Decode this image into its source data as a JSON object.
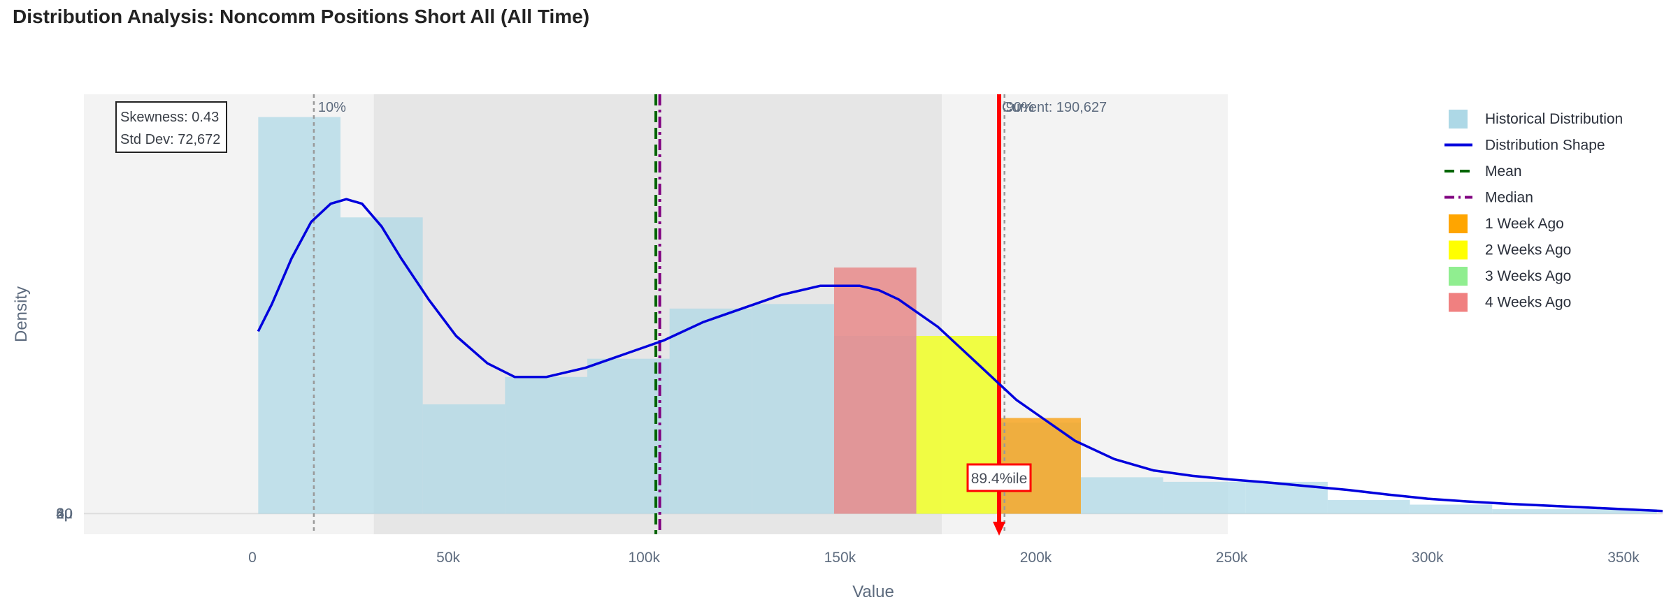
{
  "title": "Distribution Analysis: Noncomm Positions Short All (All Time)",
  "chart_data": {
    "type": "bar",
    "xlabel": "Value",
    "ylabel": "Density",
    "xlim": [
      -43000,
      360000
    ],
    "ylim": [
      -0.00045,
      0.0092
    ],
    "x_ticks": [
      {
        "value": 0,
        "label": "0"
      },
      {
        "value": 50000,
        "label": "50k"
      },
      {
        "value": 100000,
        "label": "100k"
      },
      {
        "value": 150000,
        "label": "150k"
      },
      {
        "value": 200000,
        "label": "200k"
      },
      {
        "value": 250000,
        "label": "250k"
      },
      {
        "value": 300000,
        "label": "300k"
      },
      {
        "value": 350000,
        "label": "350k"
      }
    ],
    "y_ticks": [
      {
        "value": 0,
        "label": "0"
      },
      {
        "value": 2e-06,
        "label": "2µ"
      },
      {
        "value": 4e-06,
        "label": "4µ"
      },
      {
        "value": 6e-06,
        "label": "6µ"
      },
      {
        "value": 8e-06,
        "label": "8µ"
      }
    ],
    "y_display_scale": 1000,
    "bands": [
      {
        "x0": 31000,
        "x1": 176000,
        "color": "#e6e6e6"
      },
      {
        "x0": -43000,
        "x1": 31000,
        "color": "#f3f3f3"
      },
      {
        "x0": 176000,
        "x1": 249000,
        "color": "#f3f3f3"
      }
    ],
    "histogram": [
      {
        "x0": 1500,
        "x1": 22500,
        "density": 0.0087
      },
      {
        "x0": 22500,
        "x1": 43500,
        "density": 0.0065
      },
      {
        "x0": 43500,
        "x1": 64500,
        "density": 0.0024
      },
      {
        "x0": 64500,
        "x1": 85500,
        "density": 0.003
      },
      {
        "x0": 85500,
        "x1": 106500,
        "density": 0.0034
      },
      {
        "x0": 106500,
        "x1": 127500,
        "density": 0.0045
      },
      {
        "x0": 127500,
        "x1": 148500,
        "density": 0.0046
      },
      {
        "x0": 148500,
        "x1": 169500,
        "density": 0.0039
      },
      {
        "x0": 169500,
        "x1": 190500,
        "density": 0.0039
      },
      {
        "x0": 190500,
        "x1": 211500,
        "density": 0.002
      },
      {
        "x0": 211500,
        "x1": 232500,
        "density": 0.0008
      },
      {
        "x0": 232500,
        "x1": 253500,
        "density": 0.0007
      },
      {
        "x0": 253500,
        "x1": 274500,
        "density": 0.0007
      },
      {
        "x0": 274500,
        "x1": 295500,
        "density": 0.0003
      },
      {
        "x0": 295500,
        "x1": 316500,
        "density": 0.0002
      },
      {
        "x0": 316500,
        "x1": 337500,
        "density": 0.0001
      },
      {
        "x0": 337500,
        "x1": 358500,
        "density": 0.0001
      }
    ],
    "weeks_ago": [
      {
        "name": "4 Weeks Ago",
        "x0": 148500,
        "x1": 169500,
        "density": 0.0054,
        "color": "#e88a8a"
      },
      {
        "name": "3 Weeks Ago",
        "x0": 169500,
        "x1": 190500,
        "density": 0.0039,
        "color": "#90ee90"
      },
      {
        "name": "2 Weeks Ago",
        "x0": 169500,
        "x1": 190500,
        "density": 0.0039,
        "color": "#ffff33"
      },
      {
        "name": "1 Week Ago",
        "x0": 190500,
        "x1": 211500,
        "density": 0.0021,
        "color": "#f7a521"
      }
    ],
    "kde": {
      "x": [
        1500,
        5000,
        10000,
        15000,
        20000,
        24000,
        28000,
        33000,
        38000,
        45000,
        52000,
        60000,
        67000,
        75000,
        85000,
        95000,
        105000,
        115000,
        125000,
        135000,
        145000,
        150000,
        155000,
        160000,
        165000,
        170000,
        175000,
        180000,
        185000,
        190000,
        195000,
        200000,
        210000,
        220000,
        230000,
        240000,
        250000,
        260000,
        270000,
        280000,
        290000,
        300000,
        310000,
        320000,
        330000,
        340000,
        350000,
        360000
      ],
      "y": [
        0.004,
        0.0046,
        0.0056,
        0.0064,
        0.0068,
        0.0069,
        0.0068,
        0.0063,
        0.0056,
        0.0047,
        0.0039,
        0.0033,
        0.003,
        0.003,
        0.0032,
        0.0035,
        0.0038,
        0.0042,
        0.0045,
        0.0048,
        0.005,
        0.005,
        0.005,
        0.0049,
        0.0047,
        0.0044,
        0.0041,
        0.0037,
        0.0033,
        0.0029,
        0.0025,
        0.0022,
        0.0016,
        0.0012,
        0.00095,
        0.00083,
        0.00075,
        0.00068,
        0.0006,
        0.00052,
        0.00042,
        0.00033,
        0.00027,
        0.00022,
        0.00018,
        0.00014,
        0.0001,
        6e-05
      ],
      "color": "#0000dd"
    },
    "mean": 103000,
    "median": 104000,
    "p10": 15700,
    "p90": 192000,
    "current": 190627,
    "labels": {
      "p10": "10%",
      "p90": "90%",
      "current": "Current: 190,627",
      "percentile": "89.4%ile",
      "skewness": "Skewness: 0.43",
      "std_dev": "Std Dev: 72,672"
    },
    "legend": [
      {
        "name": "Historical Distribution",
        "kind": "box",
        "color": "#add8e6"
      },
      {
        "name": "Distribution Shape",
        "kind": "line",
        "color": "#0000dd"
      },
      {
        "name": "Mean",
        "kind": "dash",
        "color": "#006400"
      },
      {
        "name": "Median",
        "kind": "dashdot",
        "color": "#800080"
      },
      {
        "name": "1 Week Ago",
        "kind": "box",
        "color": "#ffa500"
      },
      {
        "name": "2 Weeks Ago",
        "kind": "box",
        "color": "#ffff00"
      },
      {
        "name": "3 Weeks Ago",
        "kind": "box",
        "color": "#90ee90"
      },
      {
        "name": "4 Weeks Ago",
        "kind": "box",
        "color": "#f08080"
      }
    ],
    "colors": {
      "histogram": "#add8e6",
      "mean": "#006400",
      "median": "#800080",
      "current": "#ff0000",
      "percentile_line": "#999999",
      "grid": "#dcdcdc",
      "plot_bg": "#ffffff"
    },
    "legend_position": "top-right",
    "grid": true
  }
}
